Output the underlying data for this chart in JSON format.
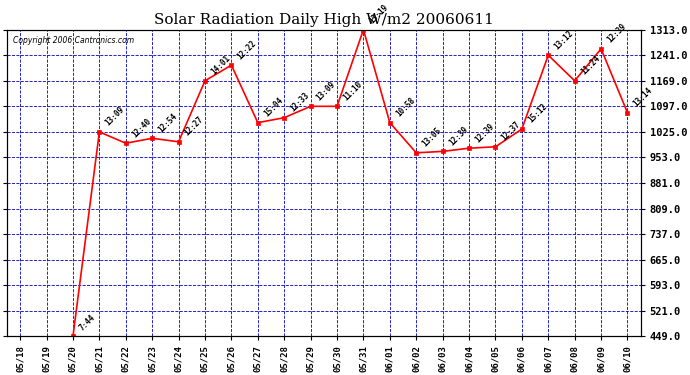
{
  "title": "Solar Radiation Daily High W/m2 20060611",
  "copyright": "Copyright 2006 Cantronics.com",
  "dates": [
    "05/18",
    "05/19",
    "05/20",
    "05/21",
    "05/22",
    "05/23",
    "05/24",
    "05/25",
    "05/26",
    "05/27",
    "05/28",
    "05/29",
    "05/30",
    "05/31",
    "06/01",
    "06/02",
    "06/03",
    "06/04",
    "06/05",
    "06/06",
    "06/07",
    "06/08",
    "06/09",
    "06/10"
  ],
  "values": [
    null,
    null,
    449,
    1025,
    993,
    1007,
    997,
    1169,
    1213,
    1051,
    1065,
    1097,
    1097,
    1313,
    1051,
    966,
    970,
    979,
    983,
    1033,
    1241,
    1169,
    1259,
    1079
  ],
  "labels": [
    "",
    "",
    "7:44",
    "13:09",
    "12:40",
    "12:54",
    "12:27",
    "14:01",
    "12:22",
    "15:04",
    "12:33",
    "13:09",
    "11:10",
    "13:19",
    "10:58",
    "13:05",
    "12:39",
    "12:39",
    "12:37",
    "15:12",
    "13:12",
    "11:24",
    "12:39",
    "13:14"
  ],
  "line_color": "#FF0000",
  "marker_color": "#FF0000",
  "background_color": "#FFFFFF",
  "plot_bg_color": "#FFFFFF",
  "grid_color": "#0000BB",
  "label_color": "#000000",
  "title_color": "#000000",
  "yticks": [
    449.0,
    521.0,
    593.0,
    665.0,
    737.0,
    809.0,
    881.0,
    953.0,
    1025.0,
    1097.0,
    1169.0,
    1241.0,
    1313.0
  ],
  "ymin": 449.0,
  "ymax": 1313.0
}
